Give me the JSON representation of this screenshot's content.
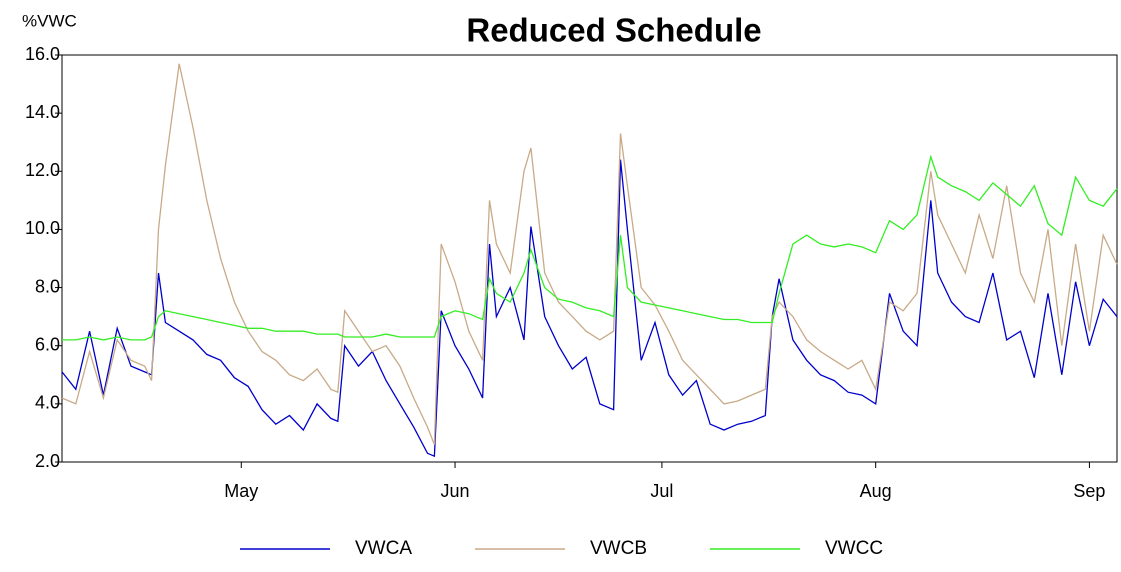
{
  "chart_data": {
    "type": "line",
    "title": "Reduced Schedule",
    "y_label": "%VWC",
    "x": [
      0,
      2,
      4,
      6,
      8,
      10,
      12,
      13,
      14,
      15,
      17,
      19,
      21,
      23,
      25,
      27,
      29,
      31,
      33,
      35,
      37,
      39,
      40,
      41,
      43,
      45,
      47,
      49,
      51,
      53,
      54,
      55,
      57,
      59,
      61,
      62,
      63,
      65,
      67,
      68,
      70,
      72,
      74,
      76,
      78,
      80,
      81,
      82,
      84,
      86,
      88,
      90,
      92,
      94,
      96,
      98,
      100,
      102,
      103,
      104,
      106,
      108,
      110,
      112,
      114,
      116,
      118,
      120,
      122,
      124,
      126,
      127,
      129,
      131,
      133,
      135,
      137,
      139,
      141,
      143,
      145,
      147,
      149,
      151,
      153
    ],
    "xlim": [
      0,
      153
    ],
    "xticks": [
      {
        "value": 26,
        "label": "May"
      },
      {
        "value": 57,
        "label": "Jun"
      },
      {
        "value": 87,
        "label": "Jul"
      },
      {
        "value": 118,
        "label": "Aug"
      },
      {
        "value": 149,
        "label": "Sep"
      }
    ],
    "ylim": [
      2,
      16
    ],
    "yticks": [
      {
        "value": 2,
        "label": "2.0"
      },
      {
        "value": 4,
        "label": "4.0"
      },
      {
        "value": 6,
        "label": "6.0"
      },
      {
        "value": 8,
        "label": "8.0"
      },
      {
        "value": 10,
        "label": "10.0"
      },
      {
        "value": 12,
        "label": "12.0"
      },
      {
        "value": 14,
        "label": "14.0"
      },
      {
        "value": 16,
        "label": "16.0"
      }
    ],
    "grid": false,
    "legend": "bottom",
    "series": [
      {
        "name": "VWCA",
        "color": "#0000cc",
        "values": [
          5.1,
          4.5,
          6.5,
          4.3,
          6.6,
          5.3,
          5.1,
          5.0,
          8.5,
          6.8,
          6.5,
          6.2,
          5.7,
          5.5,
          4.9,
          4.6,
          3.8,
          3.3,
          3.6,
          3.1,
          4.0,
          3.5,
          3.4,
          6.0,
          5.3,
          5.8,
          4.8,
          4.0,
          3.2,
          2.3,
          2.2,
          7.2,
          6.0,
          5.2,
          4.2,
          9.5,
          7.0,
          8.0,
          6.2,
          10.1,
          7.0,
          6.0,
          5.2,
          5.6,
          4.0,
          3.8,
          12.4,
          10.0,
          5.5,
          6.8,
          5.0,
          4.3,
          4.8,
          3.3,
          3.1,
          3.3,
          3.4,
          3.6,
          7.0,
          8.3,
          6.2,
          5.5,
          5.0,
          4.8,
          4.4,
          4.3,
          4.0,
          7.8,
          6.5,
          6.0,
          11.0,
          8.5,
          7.5,
          7.0,
          6.8,
          8.5,
          6.2,
          6.5,
          4.9,
          7.8,
          5.0,
          8.2,
          6.0,
          7.6,
          7.0
        ]
      },
      {
        "name": "VWCB",
        "color": "#c8aa88",
        "values": [
          4.2,
          4.0,
          5.8,
          4.2,
          6.2,
          5.5,
          5.3,
          4.8,
          10.0,
          12.2,
          15.7,
          13.5,
          11.0,
          9.0,
          7.5,
          6.5,
          5.8,
          5.5,
          5.0,
          4.8,
          5.2,
          4.5,
          4.4,
          7.2,
          6.5,
          5.8,
          6.0,
          5.3,
          4.2,
          3.2,
          2.6,
          9.5,
          8.2,
          6.5,
          5.5,
          11.0,
          9.5,
          8.5,
          12.0,
          12.8,
          8.5,
          7.5,
          7.0,
          6.5,
          6.2,
          6.5,
          13.3,
          11.5,
          8.0,
          7.4,
          6.5,
          5.5,
          5.0,
          4.5,
          4.0,
          4.1,
          4.3,
          4.5,
          7.0,
          7.5,
          7.0,
          6.2,
          5.8,
          5.5,
          5.2,
          5.5,
          4.5,
          7.5,
          7.2,
          7.8,
          12.0,
          10.5,
          9.5,
          8.5,
          10.5,
          9.0,
          11.5,
          8.5,
          7.5,
          10.0,
          6.0,
          9.5,
          6.5,
          9.8,
          8.8
        ]
      },
      {
        "name": "VWCC",
        "color": "#33ee22",
        "values": [
          6.2,
          6.2,
          6.3,
          6.2,
          6.3,
          6.2,
          6.2,
          6.3,
          7.0,
          7.2,
          7.1,
          7.0,
          6.9,
          6.8,
          6.7,
          6.6,
          6.6,
          6.5,
          6.5,
          6.5,
          6.4,
          6.4,
          6.4,
          6.3,
          6.3,
          6.3,
          6.4,
          6.3,
          6.3,
          6.3,
          6.3,
          7.0,
          7.2,
          7.1,
          6.9,
          8.3,
          7.8,
          7.5,
          8.5,
          9.3,
          8.0,
          7.6,
          7.5,
          7.3,
          7.2,
          7.0,
          9.8,
          8.0,
          7.5,
          7.4,
          7.3,
          7.2,
          7.1,
          7.0,
          6.9,
          6.9,
          6.8,
          6.8,
          6.8,
          7.8,
          9.5,
          9.8,
          9.5,
          9.4,
          9.5,
          9.4,
          9.2,
          10.3,
          10.0,
          10.5,
          12.5,
          11.8,
          11.5,
          11.3,
          11.0,
          11.6,
          11.2,
          10.8,
          11.5,
          10.2,
          9.8,
          11.8,
          11.0,
          10.8,
          11.4
        ]
      }
    ]
  }
}
